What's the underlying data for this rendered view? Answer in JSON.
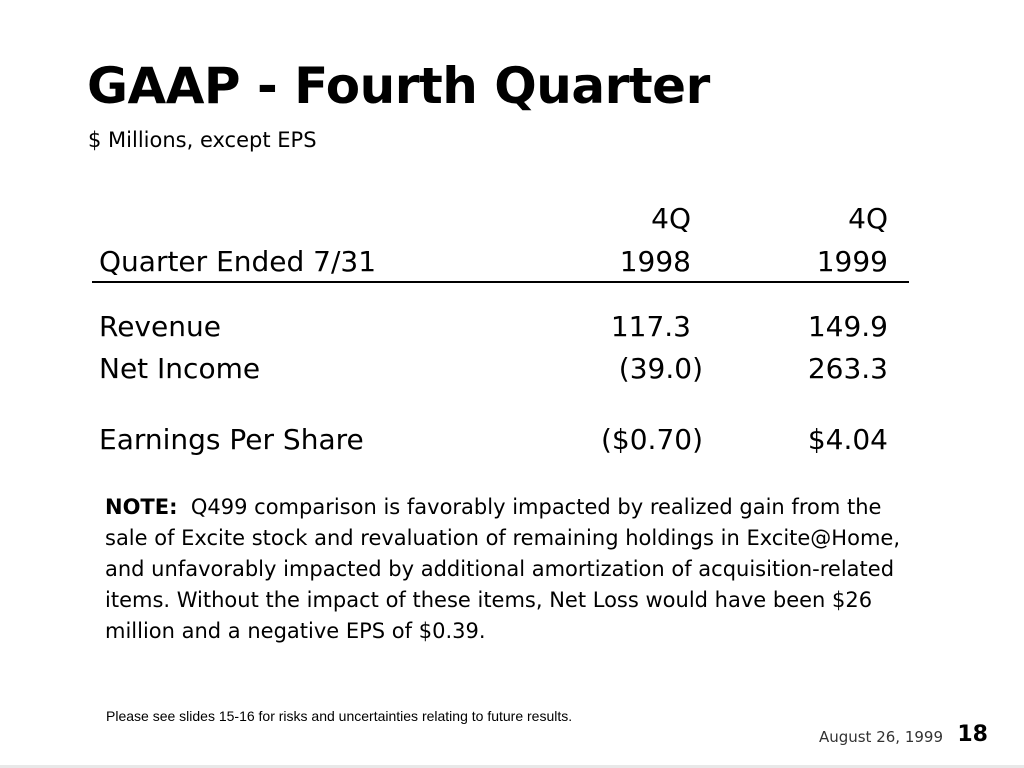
{
  "slide": {
    "title": "GAAP - Fourth Quarter",
    "subtitle": "$ Millions, except EPS"
  },
  "table": {
    "header_row1": [
      "",
      "4Q",
      "4Q"
    ],
    "header_row2": [
      "Quarter Ended 7/31",
      "1998",
      "1999"
    ],
    "rows": [
      [
        "Revenue",
        "117.3",
        "149.9"
      ],
      [
        "Net Income",
        "(39.0)",
        "263.3"
      ],
      [
        "Earnings Per Share",
        "($0.70)",
        "$4.04"
      ]
    ]
  },
  "note": {
    "label": "NOTE:",
    "text": "Q499 comparison is favorably impacted by realized gain from the sale of Excite stock and revaluation of remaining holdings in Excite@Home, and unfavorably impacted by additional amortization of acquisition-related items.  Without the impact of these items, Net Loss would have been $26 million and a negative EPS of $0.39."
  },
  "footer": {
    "disclaimer": "Please see slides 15-16 for risks and uncertainties relating to future results.",
    "date": "August 26, 1999",
    "page_number": "18"
  }
}
